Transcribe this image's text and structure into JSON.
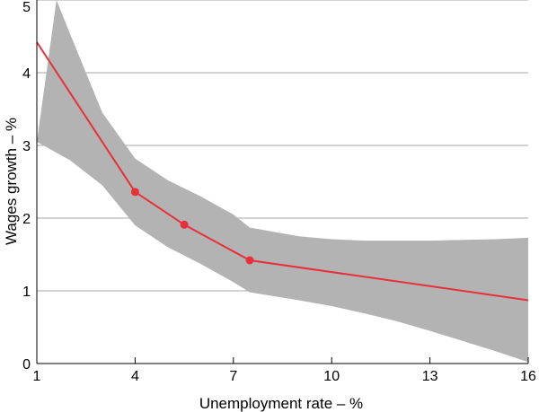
{
  "chart_data": {
    "type": "line",
    "title": "",
    "xlabel": "Unemployment rate – %",
    "ylabel": "Wages growth – %",
    "xlim": [
      1,
      16
    ],
    "ylim": [
      0,
      5
    ],
    "xticks": [
      "1",
      "4",
      "7",
      "10",
      "13",
      "16"
    ],
    "yticks": [
      "0",
      "1",
      "2",
      "3",
      "4",
      "5"
    ],
    "grid": "horizontal",
    "colors": {
      "line": "#e8303a",
      "band": "#b3b3b3",
      "grid": "#a6a6a6",
      "axis": "#000000"
    },
    "series": [
      {
        "type": "line",
        "x": [
          1,
          4,
          5.5,
          7.5,
          16
        ],
        "y": [
          4.42,
          2.36,
          1.91,
          1.42,
          0.87
        ]
      }
    ],
    "markers": {
      "x": [
        4,
        5.5,
        7.5
      ],
      "y": [
        2.36,
        1.91,
        1.42
      ]
    },
    "band": {
      "x": [
        1.6,
        2,
        3,
        4,
        5,
        6,
        7,
        7.5,
        9,
        10,
        11,
        12,
        13,
        14,
        15,
        16
      ],
      "upper": [
        5,
        4.55,
        3.45,
        2.82,
        2.52,
        2.3,
        2.05,
        1.87,
        1.75,
        1.71,
        1.69,
        1.69,
        1.69,
        1.7,
        1.71,
        1.73
      ],
      "lower_x": [
        1,
        2,
        3,
        4,
        5,
        6,
        7,
        7.5,
        9,
        10,
        11,
        12,
        13,
        14,
        15,
        16
      ],
      "lower": [
        3.05,
        2.8,
        2.45,
        1.9,
        1.6,
        1.37,
        1.12,
        0.98,
        0.87,
        0.79,
        0.69,
        0.58,
        0.45,
        0.31,
        0.17,
        0.02
      ]
    }
  }
}
